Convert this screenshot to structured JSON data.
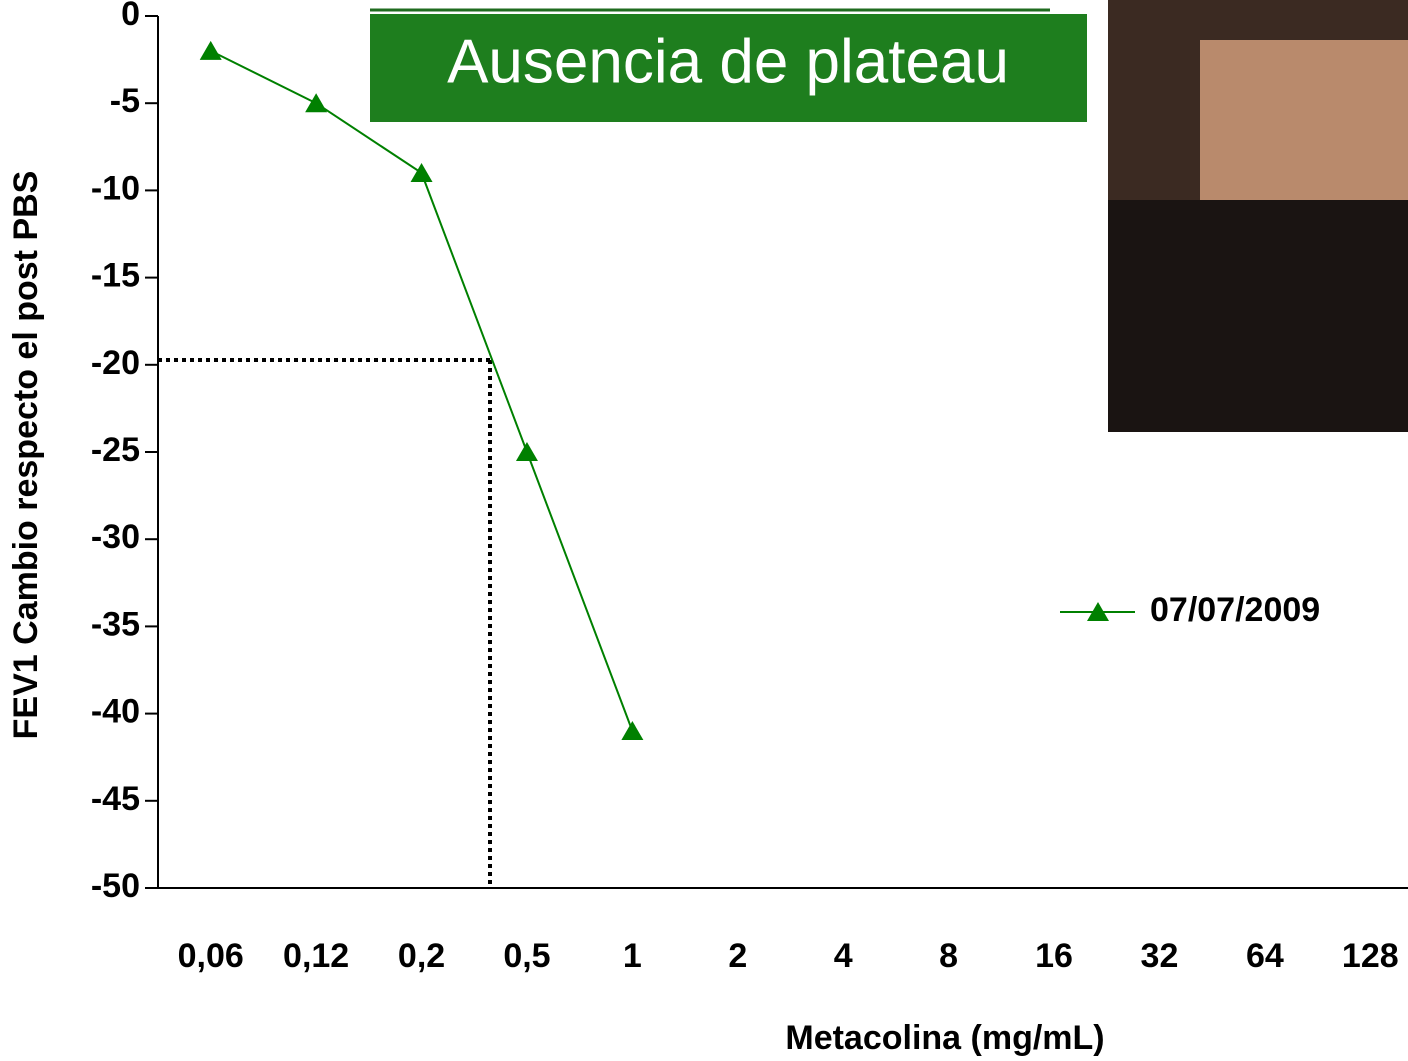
{
  "chart_data": {
    "type": "line",
    "title": "Ausencia de plateau",
    "x_label": "Metacolina (mg/mL)",
    "y_label": "FEV1 Cambio respecto el post PBS",
    "categories": [
      "0,06",
      "0,12",
      "0,2",
      "0,5",
      "1",
      "2",
      "4",
      "8",
      "16",
      "32",
      "64",
      "128"
    ],
    "series": [
      {
        "name": "07/07/2009",
        "color": "#008000",
        "marker": "triangle",
        "values": [
          -2,
          -5,
          -9,
          -25,
          -41,
          null,
          null,
          null,
          null,
          null,
          null,
          null
        ]
      }
    ],
    "ylim": [
      -50,
      0
    ],
    "yticks": [
      0,
      -5,
      -10,
      -15,
      -20,
      -25,
      -30,
      -35,
      -40,
      -45,
      -50
    ],
    "legend": "right"
  }
}
